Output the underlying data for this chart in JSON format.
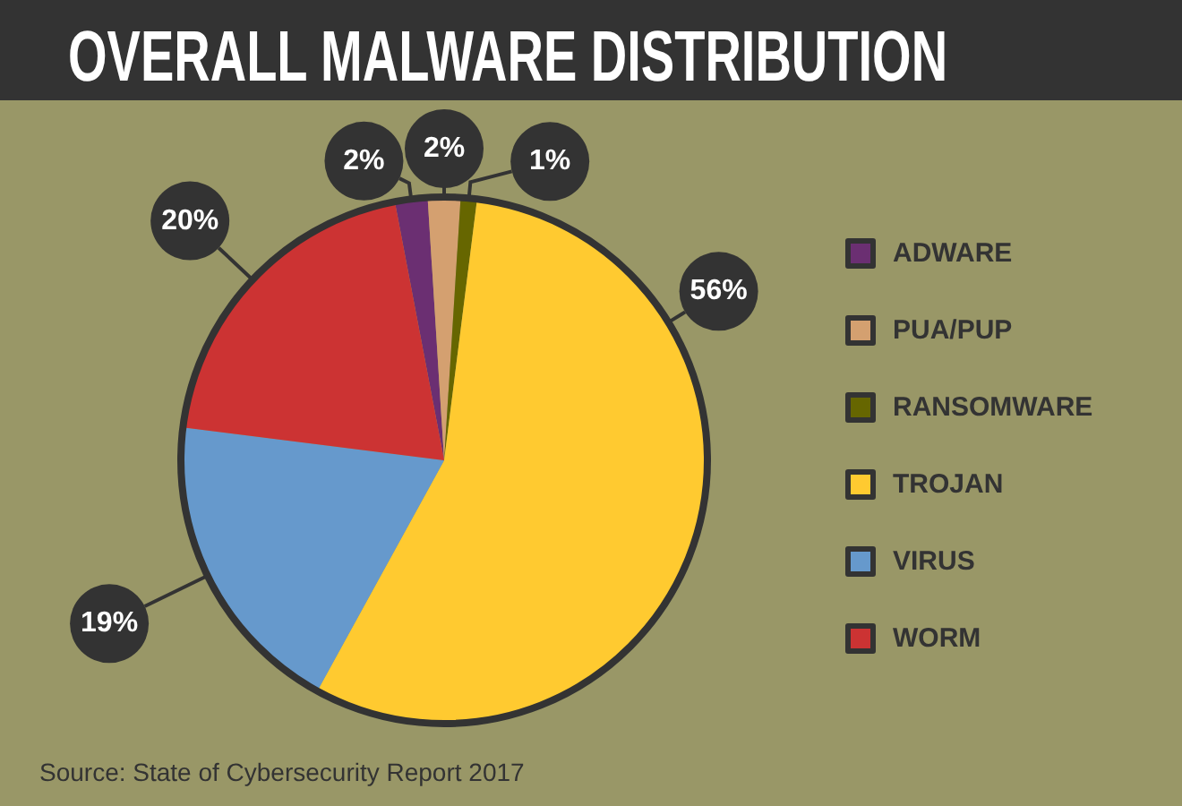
{
  "chart_data": {
    "type": "pie",
    "title": "OVERALL MALWARE DISTRIBUTION",
    "categories": [
      "ADWARE",
      "PUA/PUP",
      "RANSOMWARE",
      "TROJAN",
      "VIRUS",
      "WORM"
    ],
    "values": [
      2,
      2,
      1,
      56,
      19,
      20
    ],
    "colors": [
      "#6b2f72",
      "#d4a070",
      "#666600",
      "#ffca30",
      "#6699cc",
      "#cc3333"
    ],
    "value_labels": [
      "2%",
      "2%",
      "1%",
      "56%",
      "19%",
      "20%"
    ],
    "legend": "right",
    "annotations": [
      "Source: State of Cybersecurity Report 2017"
    ]
  }
}
